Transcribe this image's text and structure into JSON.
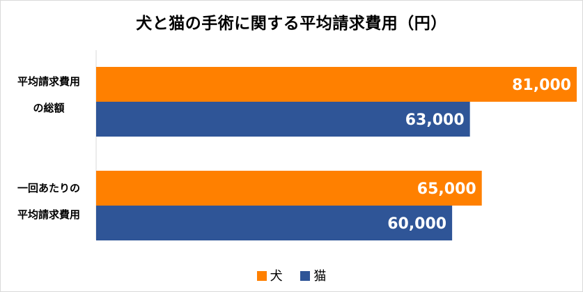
{
  "chart_data": {
    "type": "bar",
    "orientation": "horizontal",
    "title": "犬と猫の手術に関する平均請求費用（円）",
    "categories": [
      [
        "平均請求費用",
        "の総額"
      ],
      [
        "一回あたりの",
        "平均請求費用"
      ]
    ],
    "series": [
      {
        "name": "犬",
        "color": "#ff8000",
        "values": [
          81000,
          65000
        ],
        "labels": [
          "81,000",
          "65,000"
        ]
      },
      {
        "name": "猫",
        "color": "#2f5597",
        "values": [
          63000,
          60000
        ],
        "labels": [
          "63,000",
          "60,000"
        ]
      }
    ],
    "xlim": [
      0,
      81000
    ],
    "grid": false,
    "legend": "bottom"
  }
}
